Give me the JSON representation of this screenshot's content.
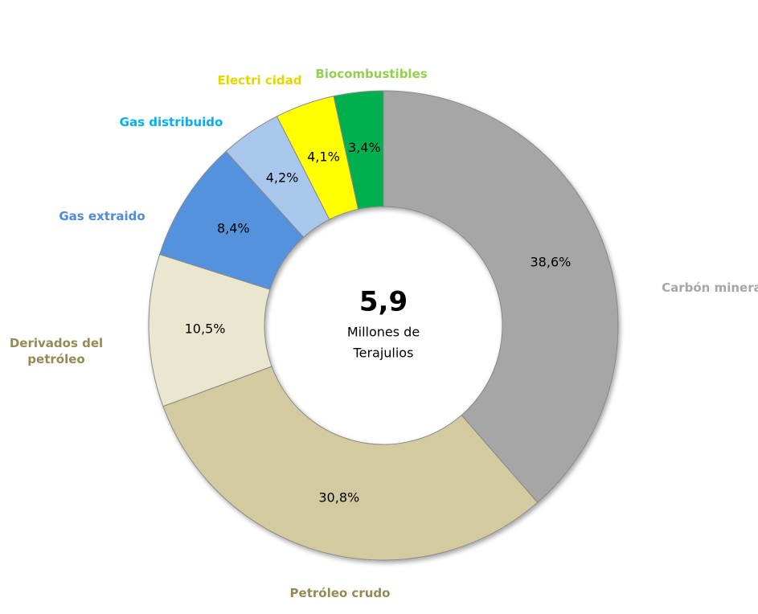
{
  "chart_data": {
    "type": "donut",
    "categories": [
      "Carbón mineral",
      "Petróleo crudo",
      "Derivados del petróleo",
      "Gas extraido",
      "Gas distribuido",
      "Electri cidad",
      "Biocombustibles"
    ],
    "values": [
      38.6,
      30.8,
      10.5,
      8.4,
      4.2,
      4.1,
      3.4
    ],
    "value_labels": [
      "38,6%",
      "30,8%",
      "10,5%",
      "8,4%",
      "4,2%",
      "4,1%",
      "3,4%"
    ],
    "colors": [
      "#a6a6a6",
      "#d3cb9f",
      "#ebe6d0",
      "#5592dd",
      "#a9c7ec",
      "#ffff00",
      "#00b050"
    ],
    "label_colors": [
      "#a6a6a6",
      "#948a54",
      "#948a54",
      "#4f8bd6",
      "#00b0f0",
      "#e6d600",
      "#92d050"
    ],
    "center_value": "5,9",
    "center_label": [
      "Millones de",
      "Terajulios"
    ]
  }
}
